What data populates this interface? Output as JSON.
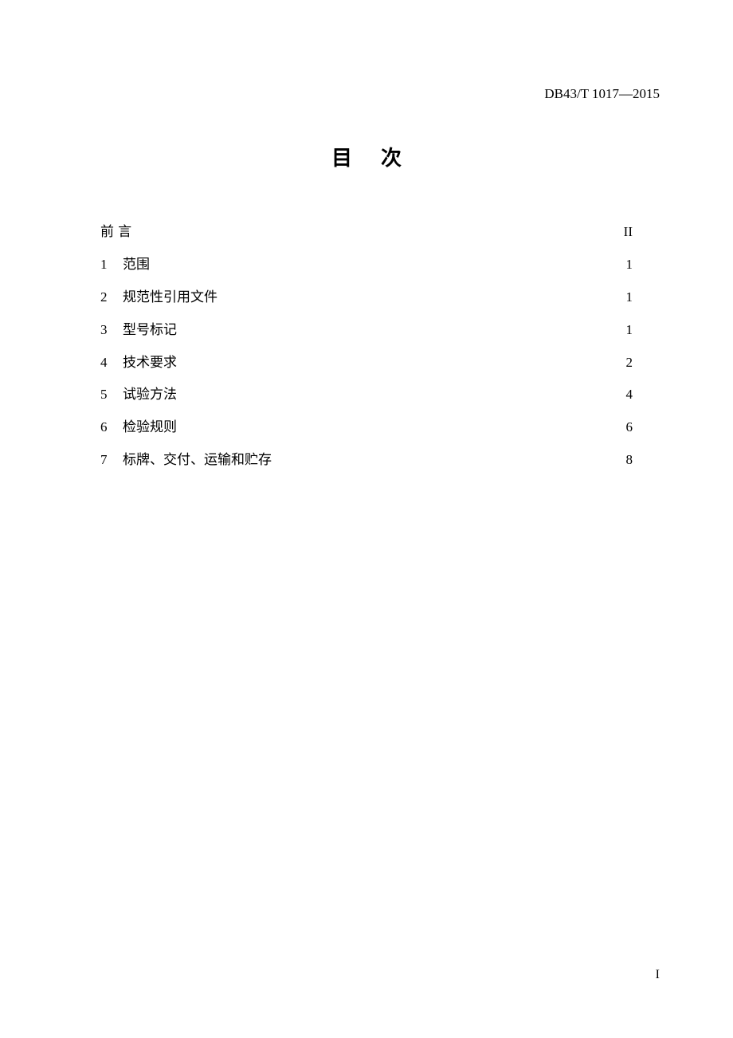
{
  "document": {
    "standard_code": "DB43/T 1017—2015",
    "title": "目次",
    "page_number": "I",
    "background_color": "#ffffff",
    "text_color": "#000000"
  },
  "toc": {
    "entries": [
      {
        "num": "",
        "label": "前言",
        "page": "II",
        "is_preface": true
      },
      {
        "num": "1",
        "label": "范围",
        "page": "1"
      },
      {
        "num": "2",
        "label": "规范性引用文件",
        "page": "1"
      },
      {
        "num": "3",
        "label": "型号标记",
        "page": "1"
      },
      {
        "num": "4",
        "label": "技术要求",
        "page": "2"
      },
      {
        "num": "5",
        "label": "试验方法",
        "page": "4"
      },
      {
        "num": "6",
        "label": "检验规则",
        "page": "6"
      },
      {
        "num": "7",
        "label": "标牌、交付、运输和贮存",
        "page": "8"
      }
    ]
  }
}
